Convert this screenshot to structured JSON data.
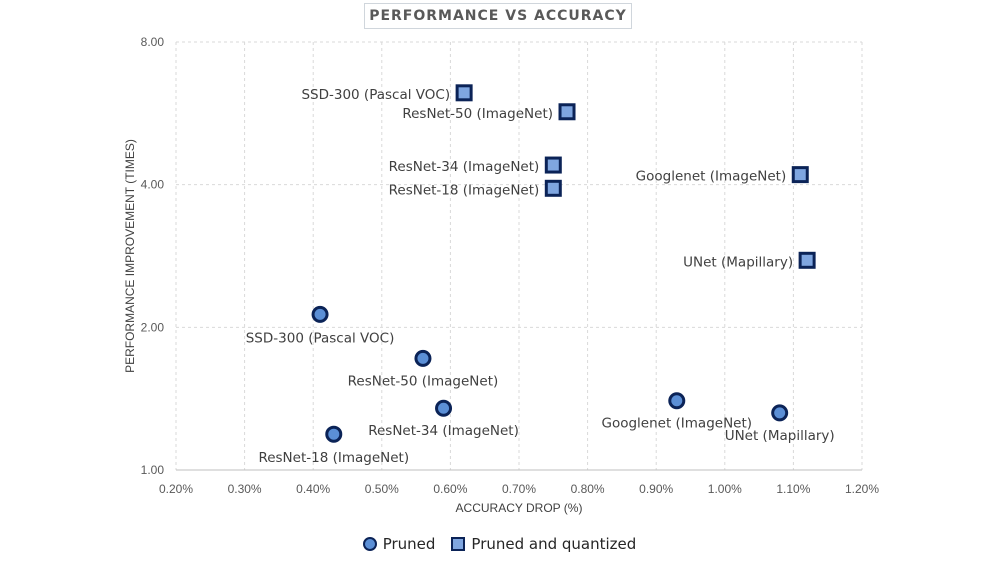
{
  "chart_data": {
    "type": "scatter",
    "title": "PERFORMANCE VS ACCURACY",
    "xlabel": "ACCURACY DROP (%)",
    "ylabel": "PERFORMANCE IMPROVEMENT (TIMES)",
    "xlim": [
      0.2,
      1.2
    ],
    "ylim": [
      1,
      8
    ],
    "y_scale": "log2",
    "x_ticks": [
      "0.20%",
      "0.30%",
      "0.40%",
      "0.50%",
      "0.60%",
      "0.70%",
      "0.80%",
      "0.90%",
      "1.00%",
      "1.10%",
      "1.20%"
    ],
    "y_ticks": [
      "1.00",
      "2.00",
      "4.00",
      "8.00"
    ],
    "grid": true,
    "legend_position": "bottom",
    "colors": {
      "circle_fill": "#5b8fd6",
      "square_fill": "#7fa6e0",
      "edge": "#0b2357"
    },
    "series": [
      {
        "name": "Pruned",
        "marker": "circle",
        "points": [
          {
            "label": "SSD-300 (Pascal VOC)",
            "x": 0.41,
            "y": 2.13
          },
          {
            "label": "ResNet-50 (ImageNet)",
            "x": 0.56,
            "y": 1.72
          },
          {
            "label": "ResNet-34 (ImageNet)",
            "x": 0.59,
            "y": 1.35
          },
          {
            "label": "ResNet-18 (ImageNet)",
            "x": 0.43,
            "y": 1.19
          },
          {
            "label": "Googlenet (ImageNet)",
            "x": 0.93,
            "y": 1.4
          },
          {
            "label": "UNet (Mapillary)",
            "x": 1.08,
            "y": 1.32
          }
        ]
      },
      {
        "name": "Pruned and quantized",
        "marker": "square",
        "points": [
          {
            "label": "SSD-300 (Pascal VOC)",
            "x": 0.62,
            "y": 6.25
          },
          {
            "label": "ResNet-50 (ImageNet)",
            "x": 0.77,
            "y": 5.7
          },
          {
            "label": "ResNet-34 (ImageNet)",
            "x": 0.75,
            "y": 4.4
          },
          {
            "label": "ResNet-18 (ImageNet)",
            "x": 0.75,
            "y": 3.93
          },
          {
            "label": "Googlenet (ImageNet)",
            "x": 1.11,
            "y": 4.2
          },
          {
            "label": "UNet (Mapillary)",
            "x": 1.12,
            "y": 2.77
          }
        ]
      }
    ]
  }
}
